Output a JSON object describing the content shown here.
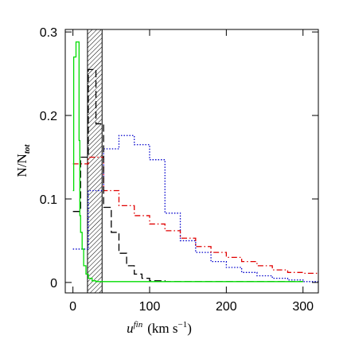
{
  "chart_data": {
    "type": "step",
    "ylabel": {
      "main": "N/N",
      "sub": "tot"
    },
    "xlabel": {
      "var": "u",
      "sup": "fin",
      "unit": "(km s",
      "unit_sup": "−1",
      "close": ")"
    },
    "xlim": [
      -10,
      320
    ],
    "ylim": [
      -0.0125,
      0.303
    ],
    "xticks": [
      0,
      100,
      200,
      300
    ],
    "yticks": [
      0,
      0.1,
      0.2,
      0.3
    ],
    "shaded_region": [
      19,
      38
    ],
    "series": [
      {
        "color": "#0000cc",
        "dash": "1.5,2",
        "bins": [
          0,
          20,
          40,
          60,
          80,
          100,
          120,
          140,
          160,
          180,
          200,
          220,
          240,
          260,
          280,
          300,
          320
        ],
        "values": [
          0.04,
          0.11,
          0.16,
          0.176,
          0.165,
          0.147,
          0.083,
          0.05,
          0.036,
          0.025,
          0.018,
          0.012,
          0.008,
          0.005,
          0.003,
          0.001
        ]
      },
      {
        "color": "#e00000",
        "dash": "7,3,1.5,3",
        "bins": [
          0,
          20,
          40,
          60,
          80,
          100,
          120,
          140,
          160,
          180,
          200,
          220,
          240,
          260,
          280,
          300,
          320
        ],
        "values": [
          0.142,
          0.15,
          0.11,
          0.092,
          0.08,
          0.07,
          0.062,
          0.053,
          0.043,
          0.036,
          0.03,
          0.025,
          0.02,
          0.015,
          0.012,
          0.011
        ]
      },
      {
        "color": "#000000",
        "dash": "9,4",
        "bins": [
          0,
          10,
          20,
          30,
          40,
          50,
          60,
          70,
          80,
          90,
          100,
          120,
          300
        ],
        "values": [
          0.085,
          0.15,
          0.255,
          0.19,
          0.09,
          0.06,
          0.035,
          0.02,
          0.01,
          0.005,
          0.002,
          0.001
        ]
      },
      {
        "color": "#00dd00",
        "dash": "none",
        "bins": [
          0,
          1,
          4,
          8,
          9,
          10,
          12,
          14,
          17,
          20,
          25,
          30,
          300
        ],
        "values": [
          0.11,
          0.27,
          0.288,
          0.17,
          0.08,
          0.06,
          0.04,
          0.02,
          0.01,
          0.005,
          0.002,
          0.001
        ]
      }
    ]
  }
}
